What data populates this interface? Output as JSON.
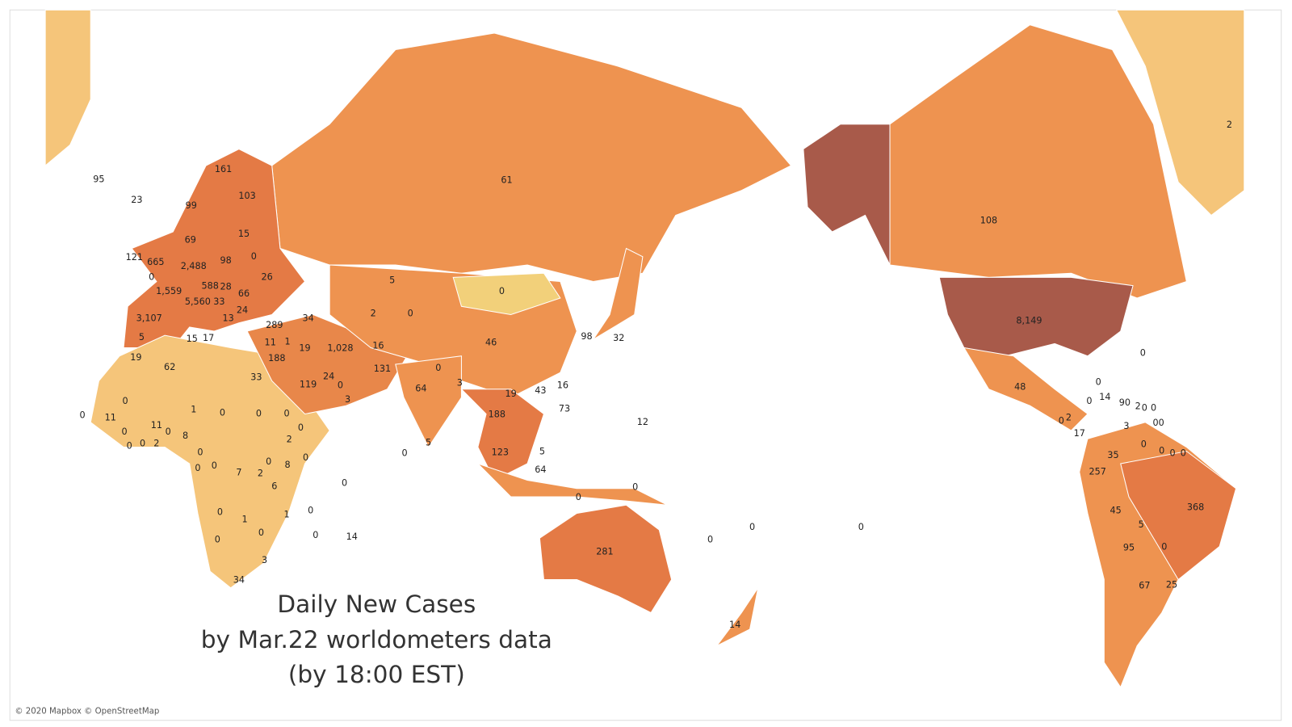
{
  "title": {
    "lines": [
      "Daily New Cases",
      "by Mar.22 worldometers data",
      "(by 18:00 EST)"
    ]
  },
  "attribution": "© 2020 Mapbox © OpenStreetMap",
  "labels": [
    "95",
    "23",
    "161",
    "103",
    "99",
    "15",
    "0",
    "69",
    "121",
    "665",
    "0",
    "2,488",
    "98",
    "26",
    "1,559",
    "588",
    "28",
    "66",
    "5,560",
    "33",
    "24",
    "13",
    "3,107",
    "5",
    "15",
    "17",
    "289",
    "34",
    "11",
    "1",
    "188",
    "19",
    "1,028",
    "16",
    "131",
    "24",
    "0",
    "119",
    "33",
    "3",
    "19",
    "62",
    "0",
    "1",
    "0",
    "0",
    "0",
    "0",
    "11",
    "0",
    "11",
    "0",
    "8",
    "2",
    "0",
    "0",
    "2",
    "0",
    "0",
    "0",
    "7",
    "2",
    "0",
    "8",
    "0",
    "6",
    "0",
    "0",
    "1",
    "1",
    "0",
    "0",
    "0",
    "14",
    "0",
    "3",
    "34",
    "0",
    "61",
    "5",
    "0",
    "2",
    "0",
    "46",
    "98",
    "32",
    "0",
    "64",
    "3",
    "19",
    "43",
    "16",
    "73",
    "188",
    "12",
    "5",
    "0",
    "123",
    "5",
    "64",
    "0",
    "0",
    "281",
    "0",
    "0",
    "0",
    "14",
    "2",
    "108",
    "8,149",
    "0",
    "48",
    "0",
    "0",
    "14",
    "90",
    "2",
    "0",
    "0",
    "2",
    "0",
    "3",
    "00",
    "17",
    "0",
    "0",
    "0",
    "0",
    "35",
    "257",
    "368",
    "45",
    "5",
    "95",
    "0",
    "67",
    "25"
  ]
}
